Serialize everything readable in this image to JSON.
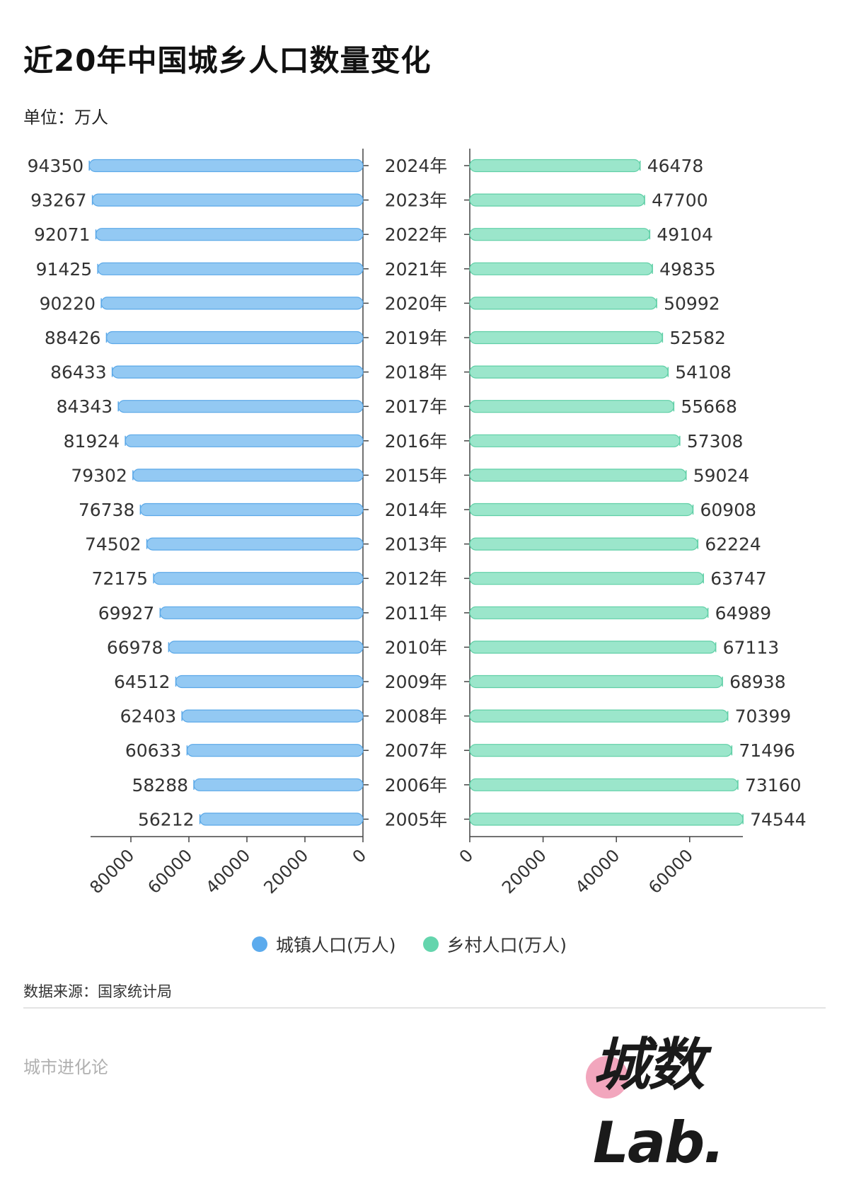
{
  "header": {
    "title": "近20年中国城乡人口数量变化",
    "unit": "单位：万人"
  },
  "legend": {
    "urban_label": "城镇人口(万人)",
    "rural_label": "乡村人口(万人)"
  },
  "footer": {
    "source": "数据来源：国家统计局",
    "brand_left": "城市进化论",
    "logo_text": "城数Lab."
  },
  "colors": {
    "urban_fill": "#93c9f3",
    "urban_stroke": "#5aa8e8",
    "urban_legend": "#5cabed",
    "rural_fill": "#9be6cb",
    "rural_stroke": "#5fcfa6",
    "rural_legend": "#64d5ad",
    "axis": "#444444",
    "logo_pink": "#f2a6bd"
  },
  "chart_data": {
    "type": "bar",
    "orientation": "horizontal-butterfly",
    "title": "近20年中国城乡人口数量变化",
    "ylabel": "单位：万人",
    "categories": [
      "2024年",
      "2023年",
      "2022年",
      "2021年",
      "2020年",
      "2019年",
      "2018年",
      "2017年",
      "2016年",
      "2015年",
      "2014年",
      "2013年",
      "2012年",
      "2011年",
      "2010年",
      "2009年",
      "2008年",
      "2007年",
      "2006年",
      "2005年"
    ],
    "series": [
      {
        "name": "城镇人口(万人)",
        "side": "left",
        "values": [
          94350,
          93267,
          92071,
          91425,
          90220,
          88426,
          86433,
          84343,
          81924,
          79302,
          76738,
          74502,
          72175,
          69927,
          66978,
          64512,
          62403,
          60633,
          58288,
          56212
        ]
      },
      {
        "name": "乡村人口(万人)",
        "side": "right",
        "values": [
          46478,
          47700,
          49104,
          49835,
          50992,
          52582,
          54108,
          55668,
          57308,
          59024,
          60908,
          62224,
          63747,
          64989,
          67113,
          68938,
          70399,
          71496,
          73160,
          74544
        ]
      }
    ],
    "left_axis": {
      "ticks": [
        "80000",
        "60000",
        "40000",
        "20000",
        "0"
      ],
      "range": [
        0,
        94350
      ],
      "reversed": true
    },
    "right_axis": {
      "ticks": [
        "0",
        "20000",
        "40000",
        "60000"
      ],
      "range": [
        0,
        74544
      ]
    },
    "grid": false,
    "legend_position": "bottom",
    "source": "数据来源：国家统计局"
  }
}
